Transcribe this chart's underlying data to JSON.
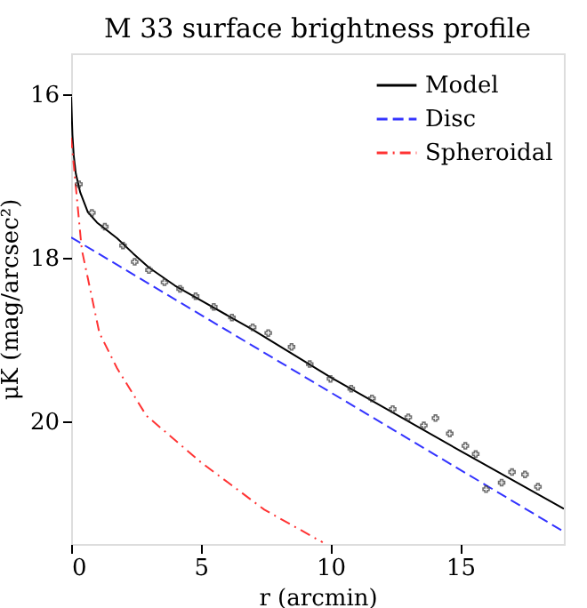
{
  "chart_data": {
    "type": "line",
    "title": "M 33 surface brightness profile",
    "xlabel": "r (arcmin)",
    "ylabel": "μK (mag/arcsec²)",
    "xlim": [
      0,
      19
    ],
    "xticks": [
      0,
      5,
      10,
      15
    ],
    "ylim": [
      21.5,
      15.5
    ],
    "yticks": [
      16,
      18,
      20
    ],
    "grid": false,
    "legend": "top right",
    "series": [
      {
        "name": "Model",
        "color": "#000000",
        "line_style": "solid",
        "x": [
          0,
          0.05,
          0.1,
          0.18,
          0.35,
          0.64,
          1.0,
          1.77,
          2.4,
          3,
          4,
          5,
          7,
          10,
          15,
          19
        ],
        "values": [
          16.03,
          16.5,
          16.75,
          16.97,
          17.2,
          17.44,
          17.57,
          17.76,
          17.95,
          18.12,
          18.34,
          18.52,
          18.88,
          19.46,
          20.36,
          21.07
        ]
      },
      {
        "name": "Disc",
        "color": "#3333ff",
        "line_style": "dashed",
        "x": [
          0,
          19
        ],
        "values": [
          17.75,
          21.35
        ]
      },
      {
        "name": "Spheroidal",
        "color": "#ff3333",
        "line_style": "dashdot",
        "x": [
          0,
          0.41,
          1.09,
          1.77,
          2.9,
          5,
          7.45,
          9.7
        ],
        "values": [
          16.53,
          17.9,
          18.92,
          19.35,
          19.93,
          20.5,
          21.08,
          21.48
        ]
      },
      {
        "type": "scatter",
        "marker": "cross",
        "color": "#333333",
        "x": [
          0.3,
          0.8,
          1.3,
          2.0,
          2.45,
          3.0,
          3.6,
          4.2,
          4.8,
          5.5,
          6.2,
          7.0,
          7.6,
          8.5,
          9.2,
          10.0,
          10.8,
          11.6,
          12.4,
          13.0,
          13.6,
          14.05,
          14.6,
          15.2,
          15.6,
          16.0,
          16.6,
          17.0,
          17.5,
          18.0
        ],
        "values": [
          17.1,
          17.45,
          17.62,
          17.85,
          18.05,
          18.15,
          18.3,
          18.38,
          18.47,
          18.6,
          18.73,
          18.85,
          18.92,
          19.09,
          19.3,
          19.48,
          19.6,
          19.72,
          19.85,
          19.95,
          20.05,
          19.96,
          20.15,
          20.3,
          20.4,
          20.83,
          20.75,
          20.62,
          20.65,
          20.8
        ]
      }
    ]
  }
}
